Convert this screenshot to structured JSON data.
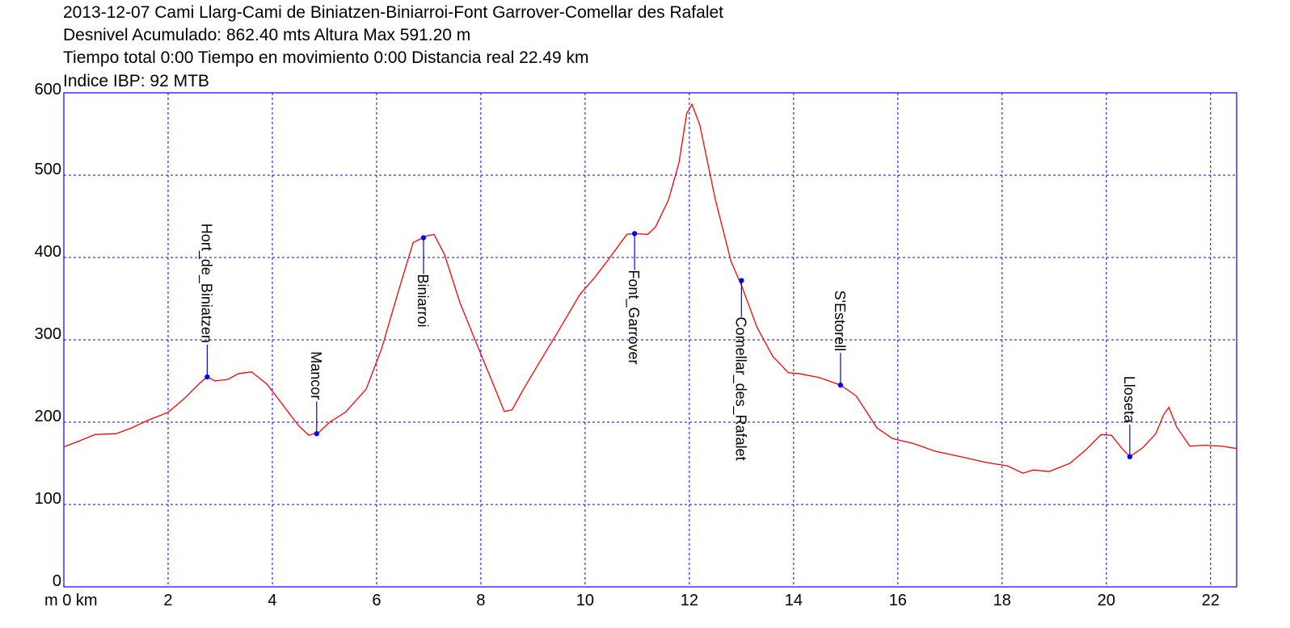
{
  "header": {
    "line1": "2013-12-07 Cami Llarg-Cami de Biniatzen-Biniarroi-Font Garrover-Comellar des Rafalet",
    "line2": "Desnivel Acumulado: 862.40 mts  Altura Max 591.20 m",
    "line3": "Tiempo total 0:00 Tiempo en movimiento 0:00 Distancia real 22.49 km",
    "line4": "Indice IBP: 92 MTB"
  },
  "colors": {
    "profile": "#ff0000",
    "frame": "#0000ff",
    "grid": "#0000ff",
    "waypoint": "#0000ff",
    "text": "#000000"
  },
  "chart_data": {
    "type": "line",
    "title": "2013-12-07 Cami Llarg-Cami de Biniatzen-Biniarroi-Font Garrover-Comellar des Rafalet",
    "xlabel": "km",
    "ylabel": "m",
    "xlim": [
      0,
      22.5
    ],
    "ylim": [
      0,
      600
    ],
    "x_ticks": [
      0,
      2,
      4,
      6,
      8,
      10,
      12,
      14,
      16,
      18,
      20,
      22
    ],
    "x_tick_labels": [
      "m 0 km",
      "2",
      "4",
      "6",
      "8",
      "10",
      "12",
      "14",
      "16",
      "18",
      "20",
      "22"
    ],
    "y_ticks": [
      0,
      100,
      200,
      300,
      400,
      500,
      600
    ],
    "y_tick_labels": [
      "0",
      "100",
      "200",
      "300",
      "400",
      "500",
      "600"
    ],
    "grid": true,
    "series": [
      {
        "x": [
          0,
          0.25,
          0.6,
          1.0,
          1.3,
          1.6,
          2.0,
          2.3,
          2.6,
          2.75,
          2.9,
          3.15,
          3.35,
          3.6,
          3.9,
          4.2,
          4.5,
          4.7,
          4.9,
          5.1,
          5.4,
          5.8,
          6.1,
          6.4,
          6.7,
          6.95,
          7.1,
          7.3,
          7.6,
          7.9,
          8.2,
          8.45,
          8.6,
          8.8,
          9.1,
          9.5,
          9.9,
          10.2,
          10.5,
          10.8,
          10.95,
          11.2,
          11.35,
          11.6,
          11.8,
          11.95,
          12.05,
          12.2,
          12.5,
          12.8,
          13.0,
          13.3,
          13.6,
          13.9,
          14.1,
          14.5,
          14.9,
          15.2,
          15.6,
          15.9,
          16.3,
          16.7,
          17.2,
          17.7,
          18.1,
          18.4,
          18.6,
          18.9,
          19.3,
          19.6,
          19.9,
          20.1,
          20.3,
          20.45,
          20.7,
          20.95,
          21.1,
          21.2,
          21.35,
          21.6,
          21.9,
          22.2,
          22.5
        ],
        "y": [
          170,
          176,
          185,
          186,
          193,
          202,
          212,
          228,
          247,
          255,
          250,
          252,
          259,
          261,
          246,
          221,
          196,
          184,
          188,
          200,
          212,
          240,
          290,
          355,
          418,
          426,
          428,
          404,
          345,
          298,
          252,
          213,
          215,
          238,
          270,
          312,
          355,
          377,
          402,
          428,
          429,
          428,
          437,
          470,
          515,
          575,
          586,
          561,
          470,
          395,
          366,
          315,
          280,
          260,
          259,
          254,
          245,
          232,
          193,
          180,
          174,
          165,
          158,
          151,
          147,
          138,
          142,
          140,
          150,
          166,
          185,
          184,
          168,
          158,
          169,
          186,
          209,
          218,
          194,
          171,
          172,
          171,
          168
        ]
      }
    ],
    "waypoints": [
      {
        "name": "Hort_de_Biniatzen",
        "x": 2.75,
        "y": 255
      },
      {
        "name": "Mancor",
        "x": 4.85,
        "y": 186
      },
      {
        "name": "Biniarroi",
        "x": 6.9,
        "y": 424
      },
      {
        "name": "Font_Garrover",
        "x": 10.95,
        "y": 429
      },
      {
        "name": "Comellar_des_Rafalet",
        "x": 13.0,
        "y": 372
      },
      {
        "name": "S'Estorell",
        "x": 14.9,
        "y": 245
      },
      {
        "name": "Lloseta",
        "x": 20.45,
        "y": 158
      }
    ]
  }
}
